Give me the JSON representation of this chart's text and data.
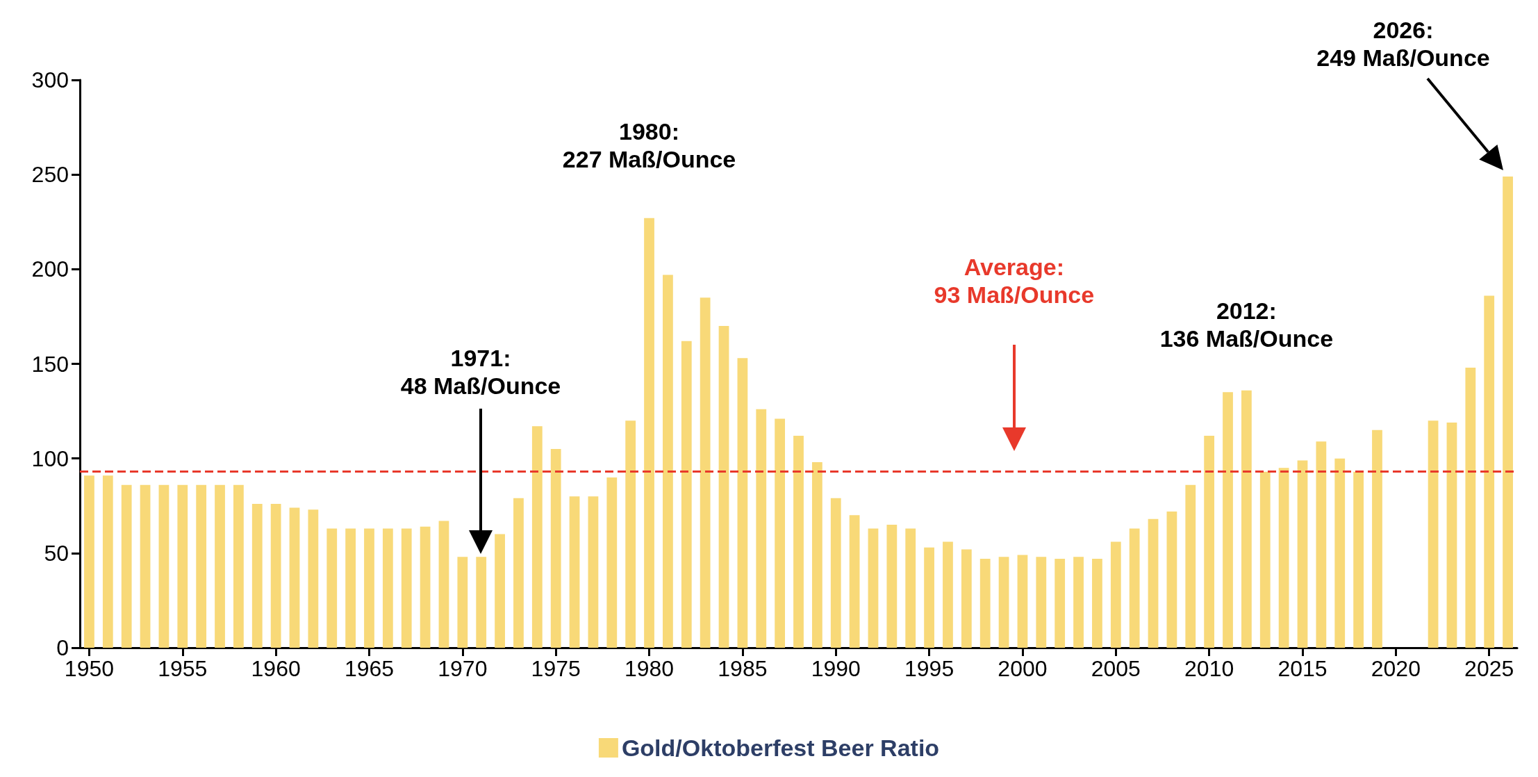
{
  "chart_data": {
    "type": "bar",
    "x": [
      1950,
      1951,
      1952,
      1953,
      1954,
      1955,
      1956,
      1957,
      1958,
      1959,
      1960,
      1961,
      1962,
      1963,
      1964,
      1965,
      1966,
      1967,
      1968,
      1969,
      1970,
      1971,
      1972,
      1973,
      1974,
      1975,
      1976,
      1977,
      1978,
      1979,
      1980,
      1981,
      1982,
      1983,
      1984,
      1985,
      1986,
      1987,
      1988,
      1989,
      1990,
      1991,
      1992,
      1993,
      1994,
      1995,
      1996,
      1997,
      1998,
      1999,
      2000,
      2001,
      2002,
      2003,
      2004,
      2005,
      2006,
      2007,
      2008,
      2009,
      2010,
      2011,
      2012,
      2013,
      2014,
      2015,
      2016,
      2017,
      2018,
      2019,
      2020,
      2021,
      2022,
      2023,
      2024,
      2025,
      2026
    ],
    "series": [
      {
        "name": "Gold/Oktoberfest Beer Ratio",
        "color": "#f8d978",
        "values": [
          91,
          91,
          86,
          86,
          86,
          86,
          86,
          86,
          86,
          76,
          76,
          74,
          73,
          63,
          63,
          63,
          63,
          63,
          64,
          67,
          48,
          48,
          60,
          79,
          117,
          105,
          80,
          80,
          90,
          120,
          227,
          197,
          162,
          185,
          170,
          153,
          126,
          121,
          112,
          98,
          79,
          70,
          63,
          65,
          63,
          53,
          56,
          52,
          47,
          48,
          49,
          48,
          47,
          48,
          47,
          56,
          63,
          68,
          72,
          86,
          112,
          135,
          136,
          93,
          95,
          99,
          109,
          100,
          93,
          115,
          null,
          null,
          120,
          119,
          148,
          186,
          249
        ]
      }
    ],
    "xlim": [
      1949.5,
      2026.5
    ],
    "xticks": [
      1950,
      1955,
      1960,
      1965,
      1970,
      1975,
      1980,
      1985,
      1990,
      1995,
      2000,
      2005,
      2010,
      2015,
      2020,
      2025
    ],
    "ylim": [
      0,
      300
    ],
    "yticks": [
      0,
      50,
      100,
      150,
      200,
      250,
      300
    ],
    "ref_lines": [
      {
        "axis": "y",
        "value": 93,
        "label": "Average:\n93 Maß/Ounce",
        "color": "#e8392b",
        "line_style": "dashed"
      }
    ],
    "annotations": [
      "1971:\n48 Maß/Ounce",
      {
        "text": "1980:\n227 Maß/Ounce",
        "x": 1980,
        "y": 227
      },
      {
        "text": "2012:\n136 Maß/Ounce",
        "x": 2012,
        "y": 136
      },
      "2026:\n249 Maß/Ounce"
    ],
    "legend": "bottom",
    "grid": false
  }
}
